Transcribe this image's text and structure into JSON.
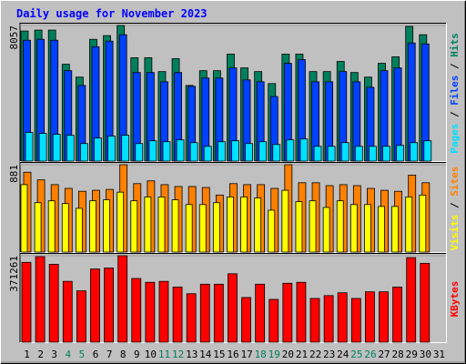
{
  "chart_data": [
    {
      "type": "bar",
      "title": "Daily usage for November 2023",
      "categories": [
        1,
        2,
        3,
        4,
        5,
        6,
        7,
        8,
        9,
        10,
        11,
        12,
        13,
        14,
        15,
        16,
        17,
        18,
        19,
        20,
        21,
        22,
        23,
        24,
        25,
        26,
        27,
        28,
        29,
        30,
        31
      ],
      "category_colors": [
        "#000000",
        "#000000",
        "#000000",
        "#00805c",
        "#00805c",
        "#000000",
        "#000000",
        "#000000",
        "#000000",
        "#000000",
        "#00805c",
        "#00805c",
        "#000000",
        "#000000",
        "#000000",
        "#000000",
        "#000000",
        "#00805c",
        "#00805c",
        "#000000",
        "#000000",
        "#000000",
        "#000000",
        "#000000",
        "#00805c",
        "#00805c",
        "#000000",
        "#000000",
        "#000000",
        "#000000",
        "#000000"
      ],
      "legend_separator": "/",
      "ylim": [
        0,
        8057
      ],
      "yticks": [
        8057
      ],
      "series": [
        {
          "name": "Hits",
          "color": "#00805c",
          "values": [
            7728,
            7783,
            7783,
            5755,
            4988,
            7235,
            7454,
            8057,
            6139,
            6139,
            5317,
            6084,
            4494,
            5371,
            5371,
            6358,
            5536,
            5317,
            4604,
            6358,
            6358,
            5317,
            5317,
            5919,
            5262,
            4988,
            5810,
            6194,
            8002,
            7509,
            null
          ]
        },
        {
          "name": "Files",
          "color": "#0040ff",
          "values": [
            7180,
            7235,
            7180,
            5371,
            4494,
            6796,
            7125,
            7509,
            5262,
            5262,
            4714,
            5262,
            4440,
            4933,
            4933,
            5536,
            4823,
            4714,
            3837,
            5810,
            6029,
            4714,
            4714,
            5317,
            4714,
            4385,
            5371,
            5536,
            7016,
            6961,
            null
          ]
        },
        {
          "name": "Pages",
          "color": "#00e0ff",
          "values": [
            1699,
            1644,
            1589,
            1535,
            1041,
            1370,
            1480,
            1535,
            1041,
            1206,
            1151,
            1261,
            1096,
            877,
            1151,
            1206,
            1041,
            1151,
            987,
            1261,
            1315,
            877,
            877,
            1096,
            877,
            877,
            877,
            932,
            1096,
            1206,
            null
          ]
        }
      ]
    },
    {
      "type": "bar",
      "legend_separator": "/",
      "ylim": [
        0,
        881
      ],
      "yticks": [
        881
      ],
      "series": [
        {
          "name": "Sites",
          "color": "#ff8000",
          "values": [
            805,
            728,
            680,
            642,
            613,
            623,
            632,
            881,
            690,
            718,
            680,
            661,
            661,
            651,
            575,
            690,
            680,
            680,
            642,
            881,
            699,
            699,
            670,
            680,
            670,
            642,
            623,
            613,
            776,
            699,
            null
          ]
        },
        {
          "name": "Visits",
          "color": "#ffff00",
          "values": [
            680,
            498,
            517,
            489,
            441,
            517,
            527,
            604,
            517,
            556,
            556,
            527,
            479,
            479,
            498,
            556,
            556,
            546,
            422,
            623,
            508,
            517,
            450,
            517,
            479,
            479,
            460,
            460,
            556,
            575,
            null
          ]
        }
      ]
    },
    {
      "type": "bar",
      "ylim": [
        0,
        371261
      ],
      "yticks": [
        371261
      ],
      "series": [
        {
          "name": "KBytes",
          "color": "#ff0000",
          "values": [
            342720,
            367200,
            334560,
            261120,
            220320,
            314160,
            318240,
            371261,
            273360,
            257040,
            261120,
            236640,
            208080,
            248880,
            248880,
            293760,
            191760,
            248880,
            183600,
            252960,
            257040,
            187680,
            199920,
            212160,
            187680,
            216240,
            216240,
            236640,
            363120,
            338640,
            null
          ]
        }
      ]
    }
  ]
}
